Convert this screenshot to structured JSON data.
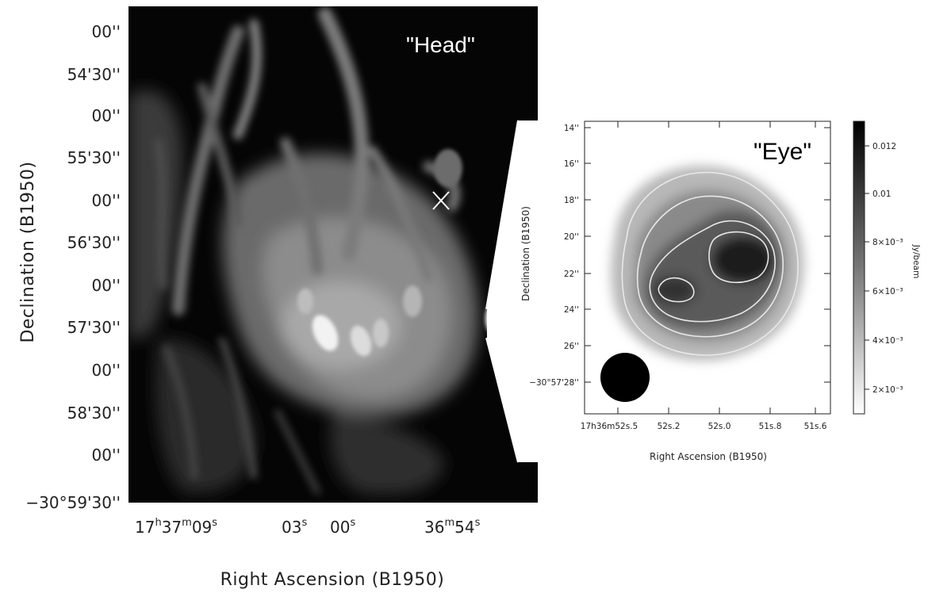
{
  "head_panel": {
    "title": "\"Head\"",
    "dec_ticks": [
      "00''",
      "54'30''",
      "00''",
      "55'30''",
      "00''",
      "56'30''",
      "00''",
      "57'30''",
      "00''",
      "58'30''",
      "00''",
      "−30°59'30''"
    ],
    "ra_ticks": [
      {
        "main": "17",
        "sup1": "h",
        "mid": "37",
        "sup2": "m",
        "end": "09",
        "sup3": "s"
      },
      {
        "main": "03",
        "sup": "s"
      },
      {
        "main": "00",
        "sup": "s"
      },
      {
        "main": "36",
        "sup1": "m",
        "end": "54",
        "sup2": "s"
      }
    ],
    "xlabel": "Right Ascension (B1950)",
    "ylabel": "Declination (B1950)",
    "marker": "x-marker"
  },
  "eye_panel": {
    "title": "\"Eye\"",
    "dec_ticks": [
      "14''",
      "16''",
      "18''",
      "20''",
      "22''",
      "24''",
      "26''",
      "−30°57'28''"
    ],
    "ra_ticks": [
      "17h36m52s.5",
      "52s.2",
      "52s.0",
      "51s.8",
      "51s.6"
    ],
    "xlabel": "Right Ascension (B1950)",
    "ylabel": "Declination (B1950)",
    "colorbar": {
      "ticks": [
        "0.012",
        "0.01",
        "8×10⁻³",
        "6×10⁻³",
        "4×10⁻³",
        "2×10⁻³"
      ],
      "label": "Jy/beam"
    },
    "beam": "beam-ellipse"
  },
  "colors": {
    "background": "#ffffff",
    "image_dark": "#050505",
    "emission": "#e6e6e6",
    "contour": "#e8e8e8"
  }
}
